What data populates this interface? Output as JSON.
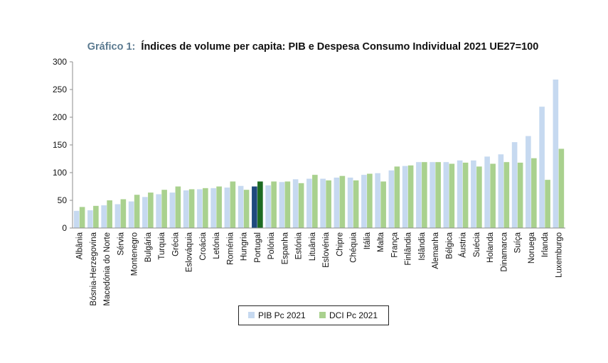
{
  "chart_data": {
    "type": "bar",
    "title_prefix": "Gráfico 1:",
    "title": "Índices de volume per capita: PIB e Despesa Consumo Individual 2021 UE27=100",
    "xlabel": "",
    "ylabel": "",
    "ylim": [
      0,
      300
    ],
    "yticks": [
      0,
      50,
      100,
      150,
      200,
      250,
      300
    ],
    "grid": false,
    "legend_position": "bottom",
    "categories": [
      "Albânia",
      "Bósnia-Herzegovina",
      "Macedónia do Norte",
      "Sérvia",
      "Montenegro",
      "Bulgária",
      "Turquia",
      "Grécia",
      "Eslováquia",
      "Croácia",
      "Letónia",
      "Roménia",
      "Hungria",
      "Portugal",
      "Polónia",
      "Espanha",
      "Estónia",
      "Lituânia",
      "Eslovénia",
      "Chipre",
      "Chéquia",
      "Itália",
      "Malta",
      "França",
      "Finlândia",
      "Islândia",
      "Alemanha",
      "Bélgica",
      "Áustria",
      "Suécia",
      "Holanda",
      "Dinamarca",
      "Suíça",
      "Noruega",
      "Irlanda",
      "Luxemburgo"
    ],
    "highlight_category": "Portugal",
    "series": [
      {
        "name": "PIB Pc 2021",
        "color": "#c6d9f0",
        "highlight_color": "#1f497d",
        "values": [
          31,
          32,
          41,
          43,
          48,
          56,
          61,
          64,
          68,
          70,
          72,
          73,
          76,
          75,
          77,
          83,
          88,
          89,
          89,
          91,
          91,
          96,
          99,
          104,
          112,
          119,
          119,
          119,
          122,
          122,
          129,
          133,
          155,
          166,
          219,
          268
        ]
      },
      {
        "name": "DCI Pc 2021",
        "color": "#a9d18e",
        "highlight_color": "#1e6b22",
        "values": [
          38,
          40,
          50,
          52,
          60,
          64,
          69,
          75,
          70,
          72,
          75,
          84,
          69,
          84,
          84,
          84,
          81,
          96,
          86,
          94,
          86,
          98,
          84,
          111,
          113,
          119,
          119,
          116,
          118,
          111,
          116,
          119,
          118,
          126,
          87,
          143
        ]
      }
    ]
  }
}
